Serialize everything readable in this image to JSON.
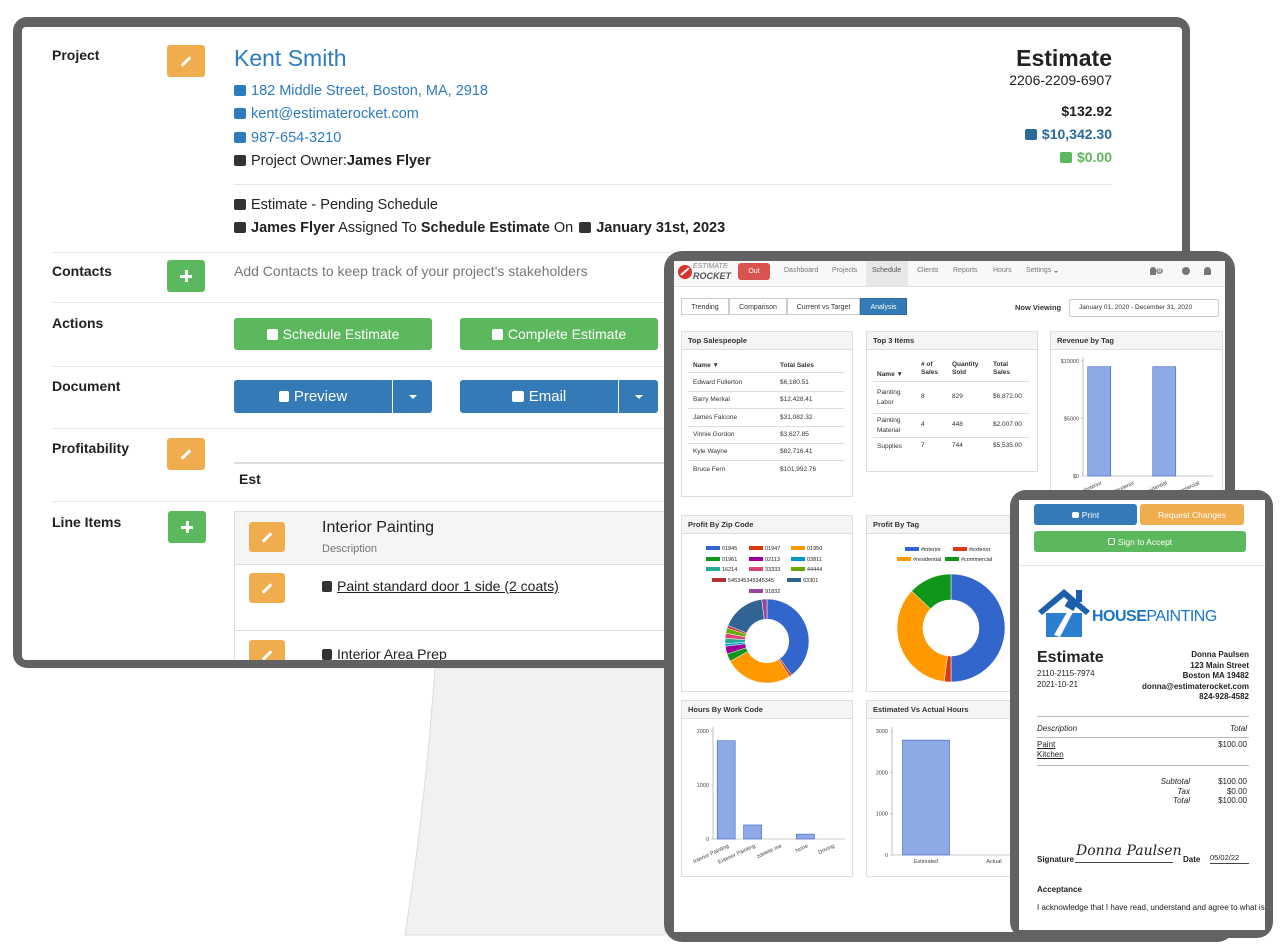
{
  "editor": {
    "sections": [
      "Project",
      "Contacts",
      "Actions",
      "Document",
      "Profitability",
      "Line Items"
    ],
    "client": {
      "name": "Kent Smith",
      "address": "182 Middle Street, Boston, MA, 2918",
      "email": "kent@estimaterocket.com",
      "phone": "987-654-3210",
      "owner_label": "Project Owner:",
      "owner": "James Flyer"
    },
    "status": "Estimate - Pending Schedule",
    "assignment": {
      "person": "James Flyer",
      "verb": "Assigned To",
      "task": "Schedule Estimate",
      "on": "On",
      "date": "January 31st, 2023"
    },
    "estimate": {
      "title": "Estimate",
      "number": "2206-2209-6907",
      "amounts": [
        "$132.92",
        "$10,342.30",
        "$0.00"
      ]
    },
    "contacts_hint": "Add Contacts to keep track of your project's stakeholders",
    "actions": [
      "Schedule Estimate",
      "Complete Estimate"
    ],
    "documents": [
      "Preview",
      "Email"
    ],
    "profitability_header": "Est",
    "line_items": {
      "group": "Interior Painting",
      "group_description": "Description",
      "items": [
        "Paint standard door 1 side (2 coats)",
        "Interior Area Prep"
      ]
    }
  },
  "analytics": {
    "logo": [
      "ESTIMATE",
      "ROCKET"
    ],
    "logout": "Out",
    "nav": [
      "Dashboard",
      "Projects",
      "Schedule",
      "Clients",
      "Reports",
      "Hours",
      "Settings"
    ],
    "active_nav": 2,
    "notification_count": 0,
    "tabs": [
      "Trending",
      "Comparison",
      "Current vs Target",
      "Analysis"
    ],
    "active_tab": 3,
    "viewing_label": "Now Viewing",
    "date_range": "January 01, 2020 - December 31, 2020",
    "top_salespeople": {
      "title": "Top Salespeople",
      "columns": [
        "Name ▼",
        "Total Sales"
      ],
      "rows": [
        [
          "Edward Fullerton",
          "$6,180.51"
        ],
        [
          "Barry Merkal",
          "$12,428.41"
        ],
        [
          "James Falcone",
          "$31,082.32"
        ],
        [
          "Vinnie Gordon",
          "$3,627.85"
        ],
        [
          "Kyle Wayne",
          "$82,716.41"
        ],
        [
          "Bruce Fern",
          "$101,992.76"
        ]
      ]
    },
    "top_items": {
      "title": "Top 3 Items",
      "columns": [
        "Name ▼",
        "# of Sales",
        "Quantity Sold",
        "Total Sales"
      ],
      "rows": [
        [
          "Painting Labor",
          8,
          829,
          "$6,872.00"
        ],
        [
          "Painting Material",
          4,
          448,
          "$2,007.00"
        ],
        [
          "Supplies",
          7,
          744,
          "$5,535.00"
        ]
      ]
    },
    "revenue_by_tag": {
      "type": "bar",
      "title": "Revenue by Tag",
      "categories": [
        "#interior",
        "#exterior",
        "#residential",
        "#commercial"
      ],
      "values": [
        9500,
        0,
        9500,
        0
      ],
      "color": "#8eaae6",
      "ylim": [
        0,
        10000
      ],
      "yticks": [
        {
          "value": 0,
          "label": "$0"
        },
        {
          "value": 5000,
          "label": "$5000"
        },
        {
          "value": 10000,
          "label": "$10000"
        }
      ]
    },
    "profit_by_zip": {
      "type": "pie",
      "donut": true,
      "title": "Profit By Zip Code",
      "categories": [
        "01845",
        "01947",
        "01950",
        "01961",
        "02113",
        "03811",
        "16214",
        "33333",
        "44444",
        "545345345345345",
        "63301",
        "91832"
      ],
      "values": [
        40,
        1,
        26,
        3,
        3,
        1,
        2,
        2,
        2,
        1,
        17,
        2
      ],
      "colors": [
        "#3366cc",
        "#dc3912",
        "#ff9900",
        "#109618",
        "#990099",
        "#0099c6",
        "#22aa99",
        "#dd4477",
        "#66aa00",
        "#b82e2e",
        "#316395",
        "#994499"
      ]
    },
    "profit_by_tag": {
      "type": "pie",
      "donut": true,
      "title": "Profit By Tag",
      "categories": [
        "#interior",
        "#exterior",
        "#residential",
        "#commercial"
      ],
      "values": [
        50,
        2,
        35,
        13
      ],
      "colors": [
        "#3366cc",
        "#dc3912",
        "#ff9900",
        "#109618"
      ]
    },
    "hours_by_work_code": {
      "type": "bar",
      "title": "Hours By Work Code",
      "categories": [
        "Interior Painting",
        "Exterior Painting",
        "zdelete me",
        "None",
        "Driving"
      ],
      "values": [
        1820,
        260,
        0,
        90,
        0
      ],
      "color": "#8eaae6",
      "ylim": [
        0,
        2000
      ],
      "yticks": [
        0,
        1000,
        2000
      ]
    },
    "estimated_vs_actual": {
      "type": "bar",
      "title": "Estimated Vs Actual Hours",
      "categories": [
        "Estimated",
        "Actual"
      ],
      "values": [
        2780,
        0
      ],
      "color": "#8eaae6",
      "ylim": [
        0,
        3000
      ],
      "yticks": [
        0,
        1000,
        2000,
        3000
      ]
    }
  },
  "document": {
    "buttons": [
      "Print",
      "Request Changes",
      "Sign to Accept"
    ],
    "logo": [
      "HOUSE",
      "PAINTING"
    ],
    "title": "Estimate",
    "number": "2110-2115-7974",
    "date": "2021-10-21",
    "client": [
      "Donna Paulsen",
      "123 Main Street",
      "Boston MA 19482",
      "donna@estimaterocket.com",
      "824-928-4582"
    ],
    "columns": [
      "Description",
      "Total"
    ],
    "item": {
      "name": [
        "Paint",
        "Kitchen"
      ],
      "total": "$100.00"
    },
    "totals": [
      [
        "Subtotal",
        "$100.00"
      ],
      [
        "Tax",
        "$0.00"
      ],
      [
        "Total",
        "$100.00"
      ]
    ],
    "signature_label": "Signature",
    "signature": "Donna Paulsen",
    "date_label": "Date",
    "signed_date": "05/02/22",
    "acceptance_title": "Acceptance",
    "acceptance_text": "I acknowledge that I have read, understand and agree to what is included in the work described in this document and I agree to the price noted above and the Terms and"
  }
}
